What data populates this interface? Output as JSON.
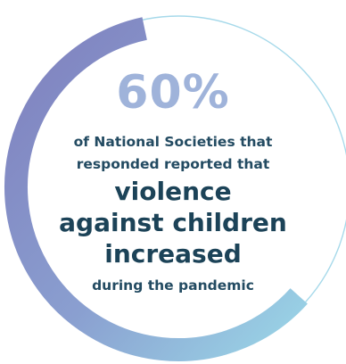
{
  "chart_data": {
    "type": "pie",
    "title": "60%",
    "value_percent": 60,
    "caption_lines": [
      "of National Societies that",
      "responded reported that",
      "violence",
      "against children",
      "increased",
      "during the pandemic"
    ]
  },
  "colors": {
    "arc_gradient_start": "#7c7fbd",
    "arc_gradient_end": "#98d3e6",
    "track": "#a6d9ea",
    "percent_text": "#9fb3da",
    "body_text": "#1c4358"
  }
}
